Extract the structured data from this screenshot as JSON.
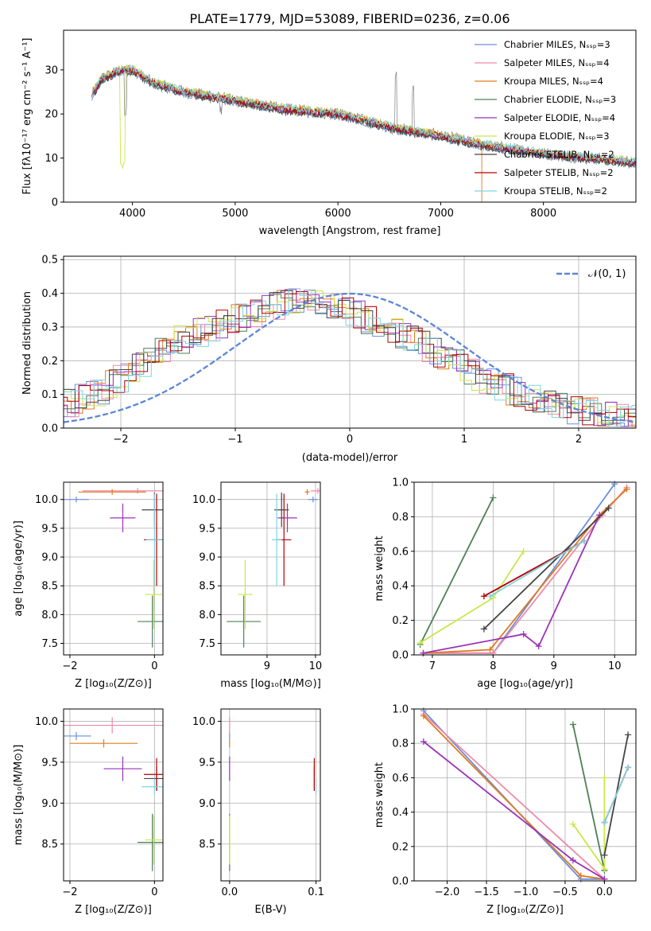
{
  "colors": {
    "series": [
      "#6a8fe0",
      "#ee8aa8",
      "#e07a1f",
      "#4d7f56",
      "#9b33b8",
      "#c9e84a",
      "#444444",
      "#b20000",
      "#7fd3df"
    ],
    "grid": "#b0b0b0",
    "normal_curve": "#5b86d6",
    "data_line": "#808080"
  },
  "chart_data": [
    {
      "type": "line",
      "title": "PLATE=1779, MJD=53089, FIBERID=0236, z=0.06",
      "xlabel": "wavelength [Angstrom, rest frame]",
      "ylabel": "Flux [fλ10⁻¹⁷ erg cm⁻² s⁻¹ A⁻¹]",
      "xlim": [
        3330,
        8900
      ],
      "ylim": [
        0,
        39
      ],
      "xticks": [
        "4000",
        "5000",
        "6000",
        "7000",
        "8000"
      ],
      "yticks": [
        "0",
        "10",
        "20",
        "30"
      ],
      "grid": false,
      "legend_position": "top-right",
      "series": [
        {
          "name": "Chabrier MILES, Nₛₛₚ=3"
        },
        {
          "name": "Salpeter MILES, Nₛₛₚ=4"
        },
        {
          "name": "Kroupa MILES, Nₛₛₚ=4"
        },
        {
          "name": "Chabrier ELODIE, Nₛₛₚ=3"
        },
        {
          "name": "Salpeter ELODIE, Nₛₛₚ=4"
        },
        {
          "name": "Kroupa ELODIE, Nₛₛₚ=3"
        },
        {
          "name": "Chabrier STELIB, Nₛₛₚ=2"
        },
        {
          "name": "Salpeter STELIB, Nₛₛₚ=2"
        },
        {
          "name": "Kroupa STELIB, Nₛₛₚ=2"
        }
      ],
      "continuum": {
        "x": [
          3600,
          3700,
          3900,
          4000,
          4200,
          4500,
          5000,
          5500,
          6000,
          6500,
          7000,
          7400,
          8000,
          8900
        ],
        "y": [
          24,
          28,
          30,
          30,
          27,
          25,
          23,
          21,
          20,
          17,
          15,
          13,
          11,
          9
        ]
      }
    },
    {
      "type": "step",
      "xlabel": "(data-model)/error",
      "ylabel": "Normed distribution",
      "xlim": [
        -2.5,
        2.5
      ],
      "ylim": [
        0,
        0.51
      ],
      "xticks": [
        "−2",
        "−1",
        "0",
        "1",
        "2"
      ],
      "yticks": [
        "0.0",
        "0.1",
        "0.2",
        "0.3",
        "0.4",
        "0.5"
      ],
      "grid": true,
      "legend_position": "top-right",
      "legend": [
        "𝒩(0, 1)"
      ],
      "bin_width": 0.1,
      "profile": {
        "x": [
          -2.5,
          -2.2,
          -1.9,
          -1.5,
          -1.0,
          -0.5,
          -0.3,
          0.0,
          0.3,
          0.8,
          1.2,
          1.6,
          2.0,
          2.5
        ],
        "y": [
          0.07,
          0.1,
          0.17,
          0.26,
          0.32,
          0.38,
          0.39,
          0.35,
          0.3,
          0.22,
          0.14,
          0.09,
          0.05,
          0.03
        ]
      }
    },
    {
      "type": "scatter",
      "xlabel": "Z [log₁₀(Z/Z⊙)]",
      "ylabel": "age  [log₁₀(age/yr)]",
      "xlim": [
        -2.15,
        0.2
      ],
      "ylim": [
        7.3,
        10.3
      ],
      "xticks": [
        "−2",
        "0"
      ],
      "yticks": [
        "7.5",
        "8.0",
        "8.5",
        "9.0",
        "9.5",
        "10.0"
      ],
      "grid": true,
      "points": [
        {
          "s": 0,
          "x": -1.85,
          "y": 10.0,
          "xerr": 0.3,
          "yerr": 0.05
        },
        {
          "s": 1,
          "x": -0.4,
          "y": 10.15,
          "xerr": 1.3,
          "yerr": 0.05
        },
        {
          "s": 2,
          "x": -1.0,
          "y": 10.13,
          "xerr": 0.8,
          "yerr": 0.05
        },
        {
          "s": 3,
          "x": -0.05,
          "y": 7.88,
          "xerr": 0.35,
          "yerr": 0.45
        },
        {
          "s": 4,
          "x": -0.75,
          "y": 9.68,
          "xerr": 0.3,
          "yerr": 0.25
        },
        {
          "s": 5,
          "x": -0.02,
          "y": 8.35,
          "xerr": 0.2,
          "yerr": 0.6
        },
        {
          "s": 6,
          "x": 0.0,
          "y": 9.82,
          "xerr": 0.3,
          "yerr": 0.3
        },
        {
          "s": 7,
          "x": 0.05,
          "y": 9.3,
          "xerr": 0.3,
          "yerr": 0.8
        },
        {
          "s": 8,
          "x": 0.0,
          "y": 9.3,
          "xerr": 0.2,
          "yerr": 0.8
        }
      ]
    },
    {
      "type": "scatter",
      "xlabel": "mass [log₁₀(M/M⊙)]",
      "xlim": [
        8.05,
        10.1
      ],
      "ylim": [
        7.3,
        10.3
      ],
      "xticks": [
        "9",
        "10"
      ],
      "yticks": [
        "7.5",
        "8.0",
        "8.5",
        "9.0",
        "9.5",
        "10.0"
      ],
      "grid": true,
      "points": [
        {
          "s": 0,
          "x": 9.95,
          "y": 10.0,
          "xerr": 0.1,
          "yerr": 0.05
        },
        {
          "s": 1,
          "x": 10.05,
          "y": 10.15,
          "xerr": 0.15,
          "yerr": 0.05
        },
        {
          "s": 2,
          "x": 9.83,
          "y": 10.13,
          "xerr": 0.05,
          "yerr": 0.05
        },
        {
          "s": 3,
          "x": 8.52,
          "y": 7.88,
          "xerr": 0.35,
          "yerr": 0.45
        },
        {
          "s": 4,
          "x": 9.42,
          "y": 9.68,
          "xerr": 0.2,
          "yerr": 0.25
        },
        {
          "s": 5,
          "x": 8.55,
          "y": 8.35,
          "xerr": 0.15,
          "yerr": 0.6
        },
        {
          "s": 6,
          "x": 9.3,
          "y": 9.82,
          "xerr": 0.15,
          "yerr": 0.3
        },
        {
          "s": 7,
          "x": 9.35,
          "y": 9.3,
          "xerr": 0.15,
          "yerr": 0.8
        },
        {
          "s": 8,
          "x": 9.2,
          "y": 9.3,
          "xerr": 0.1,
          "yerr": 0.8
        }
      ]
    },
    {
      "type": "line",
      "xlabel": "age  [log₁₀(age/yr)]",
      "ylabel": "mass weight",
      "xlim": [
        6.7,
        10.35
      ],
      "ylim": [
        0,
        1.0
      ],
      "xticks": [
        "7",
        "8",
        "9",
        "10"
      ],
      "yticks": [
        "0.0",
        "0.2",
        "0.4",
        "0.6",
        "0.8",
        "1.0"
      ],
      "grid": true,
      "series": [
        {
          "s": 0,
          "x": [
            6.85,
            8.0,
            10.0
          ],
          "y": [
            0.01,
            0.01,
            0.99
          ]
        },
        {
          "s": 1,
          "x": [
            6.85,
            8.0,
            9.8,
            10.2
          ],
          "y": [
            0.01,
            0.01,
            0.81,
            0.97
          ]
        },
        {
          "s": 2,
          "x": [
            6.85,
            7.95,
            9.75,
            10.2
          ],
          "y": [
            0.01,
            0.03,
            0.81,
            0.96
          ]
        },
        {
          "s": 3,
          "x": [
            6.8,
            8.0
          ],
          "y": [
            0.06,
            0.91
          ]
        },
        {
          "s": 4,
          "x": [
            6.85,
            8.5,
            8.75,
            9.75
          ],
          "y": [
            0.01,
            0.12,
            0.05,
            0.81
          ]
        },
        {
          "s": 5,
          "x": [
            6.8,
            8.0,
            8.5
          ],
          "y": [
            0.07,
            0.33,
            0.6
          ]
        },
        {
          "s": 6,
          "x": [
            7.85,
            9.9
          ],
          "y": [
            0.15,
            0.85
          ]
        },
        {
          "s": 7,
          "x": [
            7.85,
            9.5
          ],
          "y": [
            0.34,
            0.66
          ]
        },
        {
          "s": 8,
          "x": [
            7.95,
            9.5
          ],
          "y": [
            0.34,
            0.66
          ]
        }
      ]
    },
    {
      "type": "scatter",
      "xlabel": "Z [log₁₀(Z/Z⊙)]",
      "ylabel": "mass [log₁₀(M/M⊙)]",
      "xlim": [
        -2.15,
        0.2
      ],
      "ylim": [
        8.05,
        10.15
      ],
      "xticks": [
        "−2",
        "0"
      ],
      "yticks": [
        "8.5",
        "9.0",
        "9.5",
        "10.0"
      ],
      "grid": true,
      "points": [
        {
          "s": 0,
          "x": -1.85,
          "y": 9.82,
          "xerr": 0.35,
          "yerr": 0.05
        },
        {
          "s": 1,
          "x": -1.0,
          "y": 9.95,
          "xerr": 1.3,
          "yerr": 0.1
        },
        {
          "s": 2,
          "x": -1.2,
          "y": 9.73,
          "xerr": 0.8,
          "yerr": 0.05
        },
        {
          "s": 3,
          "x": -0.05,
          "y": 8.52,
          "xerr": 0.35,
          "yerr": 0.35
        },
        {
          "s": 4,
          "x": -0.75,
          "y": 9.42,
          "xerr": 0.45,
          "yerr": 0.15
        },
        {
          "s": 5,
          "x": -0.02,
          "y": 8.55,
          "xerr": 0.2,
          "yerr": 0.3
        },
        {
          "s": 6,
          "x": 0.05,
          "y": 9.3,
          "xerr": 0.3,
          "yerr": 0.15
        },
        {
          "s": 7,
          "x": 0.05,
          "y": 9.35,
          "xerr": 0.3,
          "yerr": 0.2
        },
        {
          "s": 8,
          "x": 0.0,
          "y": 9.2,
          "xerr": 0.3,
          "yerr": 0.1
        }
      ]
    },
    {
      "type": "scatter",
      "xlabel": "E(B-V)",
      "xlim": [
        -0.01,
        0.105
      ],
      "ylim": [
        8.05,
        10.15
      ],
      "xticks": [
        "0.0",
        "0.1"
      ],
      "yticks": [
        "8.5",
        "9.0",
        "9.5",
        "10.0"
      ],
      "grid": true,
      "points": [
        {
          "s": 0,
          "x": 0.0,
          "y": 9.82,
          "yerr": 0.05
        },
        {
          "s": 1,
          "x": 0.0,
          "y": 9.95,
          "yerr": 0.1
        },
        {
          "s": 2,
          "x": 0.0,
          "y": 9.73,
          "yerr": 0.05
        },
        {
          "s": 3,
          "x": 0.0,
          "y": 8.52,
          "yerr": 0.35
        },
        {
          "s": 4,
          "x": 0.0,
          "y": 9.42,
          "yerr": 0.15
        },
        {
          "s": 5,
          "x": 0.0,
          "y": 8.55,
          "yerr": 0.3
        },
        {
          "s": 6,
          "x": 0.098,
          "y": 9.3,
          "yerr": 0.15
        },
        {
          "s": 7,
          "x": 0.098,
          "y": 9.35,
          "yerr": 0.2
        },
        {
          "s": 8,
          "x": 0.1,
          "y": 9.2,
          "yerr": 0.1
        }
      ]
    },
    {
      "type": "line",
      "xlabel": "Z [log₁₀(Z/Z⊙)]",
      "ylabel": "mass weight",
      "xlim": [
        -2.42,
        0.4
      ],
      "ylim": [
        0,
        1.0
      ],
      "xticks": [
        "−2.0",
        "−1.5",
        "−1.0",
        "−0.5",
        "0.0"
      ],
      "yticks": [
        "0.0",
        "0.2",
        "0.4",
        "0.6",
        "0.8",
        "1.0"
      ],
      "grid": true,
      "series": [
        {
          "s": 0,
          "x": [
            -2.3,
            -0.3,
            0.0
          ],
          "y": [
            0.99,
            0.01,
            0.01
          ]
        },
        {
          "s": 1,
          "x": [
            -2.3,
            0.0
          ],
          "y": [
            0.97,
            0.01
          ]
        },
        {
          "s": 2,
          "x": [
            -2.3,
            -0.3,
            0.0
          ],
          "y": [
            0.96,
            0.03,
            0.01
          ]
        },
        {
          "s": 3,
          "x": [
            -0.4,
            0.0
          ],
          "y": [
            0.91,
            0.06
          ]
        },
        {
          "s": 4,
          "x": [
            -2.3,
            -0.4,
            0.0
          ],
          "y": [
            0.81,
            0.12,
            0.01
          ]
        },
        {
          "s": 5,
          "x": [
            -0.4,
            0.0,
            0.0
          ],
          "y": [
            0.33,
            0.07,
            0.6
          ]
        },
        {
          "s": 6,
          "x": [
            0.0,
            0.3
          ],
          "y": [
            0.15,
            0.85
          ]
        },
        {
          "s": 7,
          "x": [
            0.0,
            0.3
          ],
          "y": [
            0.34,
            0.66
          ]
        },
        {
          "s": 8,
          "x": [
            0.0,
            0.3
          ],
          "y": [
            0.34,
            0.66
          ]
        }
      ]
    }
  ]
}
